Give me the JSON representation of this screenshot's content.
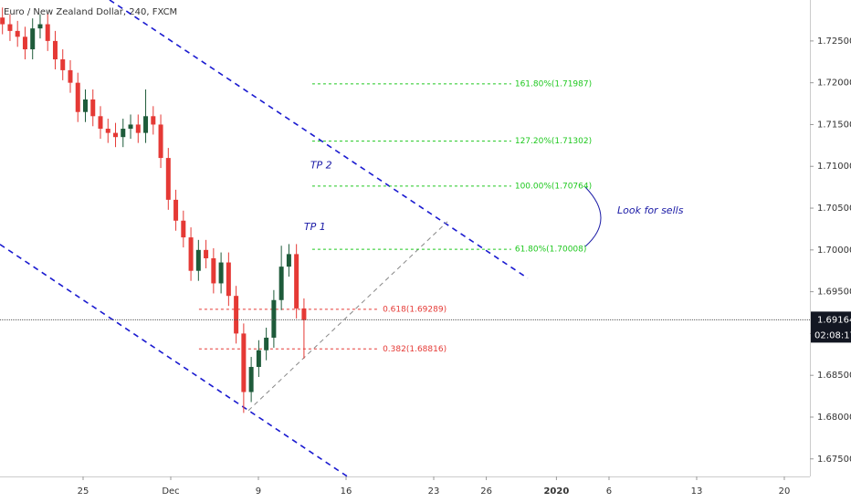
{
  "chart_data": {
    "type": "candlestick",
    "title": "Euro / New Zealand Dollar, 240, FXCM",
    "up_color": "#1e5b3a",
    "down_color": "#e53935",
    "xlim": [
      -4.74,
      41.46
    ],
    "ylim": [
      1.6729,
      1.7299
    ],
    "xticks": [
      {
        "value": 0,
        "label": "25"
      },
      {
        "value": 5,
        "label": "Dec"
      },
      {
        "value": 10,
        "label": "9"
      },
      {
        "value": 15,
        "label": "16"
      },
      {
        "value": 20,
        "label": "23"
      },
      {
        "value": 23,
        "label": "26"
      },
      {
        "value": 27,
        "label": "2020"
      },
      {
        "value": 30,
        "label": "6"
      },
      {
        "value": 35,
        "label": "13"
      },
      {
        "value": 40,
        "label": "20"
      }
    ],
    "yticks": [
      {
        "value": 1.675,
        "label": "1.67500"
      },
      {
        "value": 1.68,
        "label": "1.68000"
      },
      {
        "value": 1.685,
        "label": "1.68500"
      },
      {
        "value": 1.69,
        "label": "1.69000"
      },
      {
        "value": 1.695,
        "label": "1.69500"
      },
      {
        "value": 1.7,
        "label": "1.70000"
      },
      {
        "value": 1.705,
        "label": "1.70500"
      },
      {
        "value": 1.71,
        "label": "1.71000"
      },
      {
        "value": 1.715,
        "label": "1.71500"
      },
      {
        "value": 1.72,
        "label": "1.72000"
      },
      {
        "value": 1.725,
        "label": "1.72500"
      }
    ],
    "candles": {
      "x": [
        -4.6,
        -4.17,
        -3.74,
        -3.31,
        -2.88,
        -2.45,
        -2.02,
        -1.59,
        -1.16,
        -0.73,
        -0.3,
        0.13,
        0.56,
        0.99,
        1.42,
        1.85,
        2.28,
        2.71,
        3.14,
        3.57,
        4.0,
        4.43,
        4.86,
        5.29,
        5.72,
        6.15,
        6.58,
        7.01,
        7.44,
        7.87,
        8.3,
        8.73,
        9.16,
        9.59,
        10.02,
        10.45,
        10.88,
        11.31,
        11.74,
        12.17,
        12.6
      ],
      "open": [
        1.7278,
        1.727,
        1.7262,
        1.7255,
        1.724,
        1.7265,
        1.727,
        1.725,
        1.7228,
        1.7215,
        1.72,
        1.7165,
        1.718,
        1.716,
        1.7145,
        1.714,
        1.7135,
        1.7145,
        1.715,
        1.714,
        1.716,
        1.715,
        1.711,
        1.706,
        1.7035,
        1.7015,
        1.6975,
        1.7,
        1.699,
        1.696,
        1.6985,
        1.6945,
        1.69,
        1.683,
        1.686,
        1.688,
        1.6895,
        1.694,
        1.698,
        1.6995,
        1.693
      ],
      "high": [
        1.729,
        1.7282,
        1.7274,
        1.7267,
        1.7277,
        1.7282,
        1.7282,
        1.7262,
        1.724,
        1.7227,
        1.7212,
        1.7192,
        1.7192,
        1.7172,
        1.7157,
        1.7152,
        1.7157,
        1.7162,
        1.7162,
        1.7192,
        1.7172,
        1.7162,
        1.7122,
        1.7072,
        1.7047,
        1.7027,
        1.7012,
        1.7012,
        1.7002,
        1.6997,
        1.6997,
        1.6957,
        1.6912,
        1.6872,
        1.6892,
        1.6907,
        1.6952,
        1.7005,
        1.7007,
        1.7007,
        1.6942
      ],
      "low": [
        1.7258,
        1.725,
        1.7243,
        1.7228,
        1.7228,
        1.7253,
        1.7238,
        1.7216,
        1.7203,
        1.7188,
        1.7153,
        1.7153,
        1.7148,
        1.7133,
        1.7128,
        1.7123,
        1.7123,
        1.7133,
        1.7128,
        1.7128,
        1.7138,
        1.7098,
        1.7048,
        1.7023,
        1.7003,
        1.6963,
        1.6963,
        1.6978,
        1.6948,
        1.6948,
        1.6933,
        1.6888,
        1.6805,
        1.6818,
        1.6848,
        1.6868,
        1.6883,
        1.6928,
        1.6968,
        1.6918,
        1.687
      ],
      "close": [
        1.727,
        1.7262,
        1.7255,
        1.724,
        1.7265,
        1.727,
        1.725,
        1.7228,
        1.7215,
        1.72,
        1.7165,
        1.718,
        1.716,
        1.7145,
        1.714,
        1.7135,
        1.7145,
        1.715,
        1.714,
        1.716,
        1.715,
        1.711,
        1.706,
        1.7035,
        1.7015,
        1.6975,
        1.7,
        1.699,
        1.696,
        1.6985,
        1.6945,
        1.69,
        1.683,
        1.686,
        1.688,
        1.6895,
        1.694,
        1.698,
        1.6995,
        1.693,
        1.6916
      ]
    },
    "current_price": 1.69164,
    "countdown": "02:08:17",
    "fib_extension": {
      "color": "#1ec81e",
      "x_range": [
        13.07,
        24.42
      ],
      "levels": [
        {
          "value": 1.70008,
          "label": "61.80%(1.70008)"
        },
        {
          "value": 1.70764,
          "label": "100.00%(1.70764)"
        },
        {
          "value": 1.71302,
          "label": "127.20%(1.71302)"
        },
        {
          "value": 1.71987,
          "label": "161.80%(1.71987)"
        }
      ]
    },
    "fib_retracement": {
      "color": "#e53935",
      "x_range": [
        6.61,
        16.88
      ],
      "levels": [
        {
          "value": 1.69289,
          "label": "0.618(1.69289)"
        },
        {
          "value": 1.68816,
          "label": "0.382(1.68816)"
        }
      ]
    },
    "trendlines": [
      {
        "color": "#1a1ad0",
        "x": [
          1.51,
          25.36
        ],
        "y": [
          1.72991,
          1.69662
        ]
      },
      {
        "color": "#1a1ad0",
        "x": [
          -4.74,
          15.05
        ],
        "y": [
          1.70066,
          1.67293
        ]
      },
      {
        "color": "#888888",
        "x": [
          9.43,
          20.78
        ],
        "y": [
          1.68079,
          1.70338
        ]
      }
    ],
    "annotations": [
      {
        "text": "TP 1",
        "x": 12.6,
        "y": 1.7027
      },
      {
        "text": "TP 2",
        "x": 12.96,
        "y": 1.71009
      },
      {
        "text": "Look for sells",
        "x": 30.47,
        "y": 1.7047
      }
    ]
  }
}
